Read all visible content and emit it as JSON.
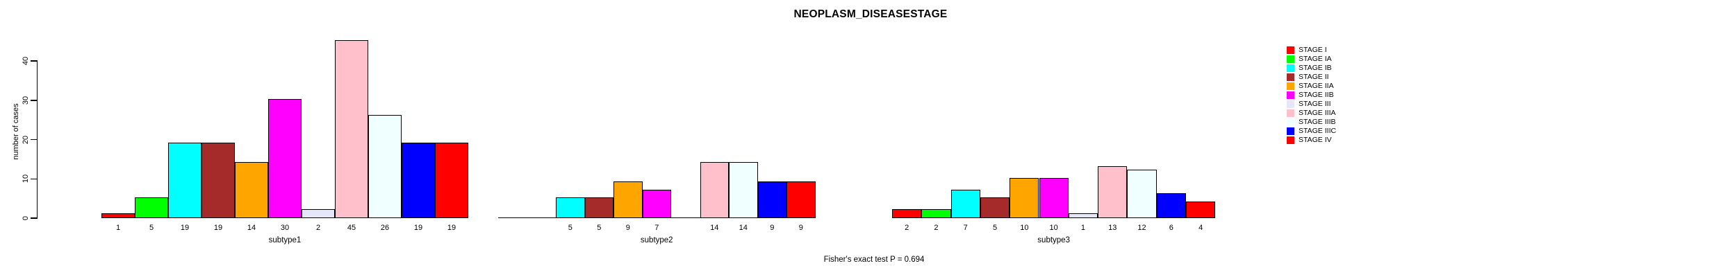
{
  "title": "NEOPLASM_DISEASESTAGE",
  "chart_data": {
    "type": "bar",
    "title": "NEOPLASM_DISEASESTAGE",
    "ylabel": "number of cases",
    "xlabel": "",
    "ylim": [
      0,
      45
    ],
    "yticks": [
      0,
      10,
      20,
      30,
      40
    ],
    "grid": false,
    "bar_value_labels_shown": true,
    "legend_position": "right",
    "caption": "Fisher's exact test P = 0.694",
    "stages": [
      {
        "label": "STAGE I",
        "color": "#FF0000"
      },
      {
        "label": "STAGE IA",
        "color": "#00FF00"
      },
      {
        "label": "STAGE IB",
        "color": "#00FFFF"
      },
      {
        "label": "STAGE II",
        "color": "#A52A2A"
      },
      {
        "label": "STAGE IIA",
        "color": "#FFA500"
      },
      {
        "label": "STAGE IIB",
        "color": "#FF00FF"
      },
      {
        "label": "STAGE III",
        "color": "#E6E6FA"
      },
      {
        "label": "STAGE IIIA",
        "color": "#FFC0CB"
      },
      {
        "label": "STAGE IIIB",
        "color": "#F0FFFF"
      },
      {
        "label": "STAGE IIIC",
        "color": "#0000FF"
      },
      {
        "label": "STAGE IV",
        "color": "#FF0000"
      }
    ],
    "categories": [
      "subtype1",
      "subtype2",
      "subtype3"
    ],
    "groups": [
      {
        "label": "subtype1",
        "values": [
          1,
          5,
          19,
          19,
          14,
          30,
          2,
          45,
          26,
          19,
          19
        ]
      },
      {
        "label": "subtype2",
        "values": [
          0,
          0,
          5,
          5,
          9,
          7,
          0,
          14,
          14,
          9,
          9
        ]
      },
      {
        "label": "subtype3",
        "values": [
          2,
          2,
          7,
          5,
          10,
          10,
          1,
          13,
          12,
          6,
          4
        ]
      }
    ]
  }
}
